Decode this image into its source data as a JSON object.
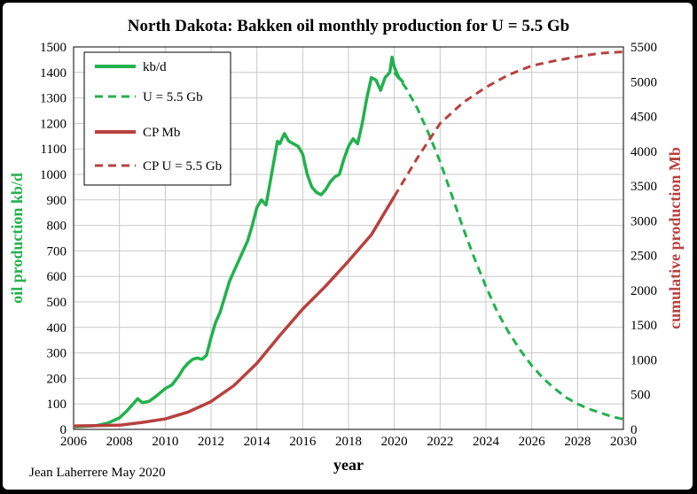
{
  "chart_data": {
    "type": "line",
    "title": "North Dakota: Bakken oil monthly production for U = 5.5 Gb",
    "xlabel": "year",
    "ylabel_left": "oil production kb/d",
    "ylabel_right": "cumulative production Mb",
    "credit": "Jean Laherrere May 2020",
    "xlim": [
      2006,
      2030
    ],
    "ylim_left": [
      0,
      1500
    ],
    "ylim_right": [
      0,
      5500
    ],
    "x_ticks": [
      "2006",
      "2008",
      "2010",
      "2012",
      "2014",
      "2016",
      "2018",
      "2020",
      "2022",
      "2024",
      "2026",
      "2028",
      "2030"
    ],
    "y_left_ticks": [
      "0",
      "100",
      "200",
      "300",
      "400",
      "500",
      "600",
      "700",
      "800",
      "900",
      "1000",
      "1100",
      "1200",
      "1300",
      "1400",
      "1500"
    ],
    "y_right_ticks": [
      "0",
      "500",
      "1000",
      "1500",
      "2000",
      "2500",
      "3000",
      "3500",
      "4000",
      "4500",
      "5000",
      "5500"
    ],
    "grid": true,
    "legend_position": "top-left",
    "colors": {
      "green": "#22b14c",
      "red": "#b7413e",
      "left_axis_label": "#22b14c",
      "right_axis_label": "#b7413e"
    },
    "series": [
      {
        "name": "kb/d",
        "axis": "left",
        "style": "solid",
        "color": "#22b14c",
        "x": [
          2006.0,
          2006.5,
          2007.0,
          2007.5,
          2008.0,
          2008.3,
          2008.6,
          2008.8,
          2009.0,
          2009.3,
          2009.6,
          2009.8,
          2010.0,
          2010.3,
          2010.6,
          2010.8,
          2011.0,
          2011.2,
          2011.4,
          2011.6,
          2011.8,
          2012.0,
          2012.2,
          2012.4,
          2012.6,
          2012.8,
          2013.0,
          2013.2,
          2013.4,
          2013.6,
          2013.8,
          2014.0,
          2014.2,
          2014.4,
          2014.6,
          2014.8,
          2014.9,
          2015.0,
          2015.2,
          2015.4,
          2015.6,
          2015.8,
          2016.0,
          2016.2,
          2016.4,
          2016.6,
          2016.8,
          2016.9,
          2017.0,
          2017.2,
          2017.4,
          2017.6,
          2017.8,
          2018.0,
          2018.2,
          2018.4,
          2018.6,
          2018.8,
          2019.0,
          2019.2,
          2019.4,
          2019.6,
          2019.8,
          2019.9,
          2020.0,
          2020.2,
          2020.4
        ],
        "y": [
          10,
          12,
          15,
          25,
          45,
          70,
          100,
          120,
          105,
          110,
          130,
          145,
          160,
          175,
          210,
          240,
          260,
          275,
          280,
          275,
          290,
          360,
          420,
          460,
          520,
          580,
          620,
          660,
          700,
          740,
          800,
          870,
          900,
          880,
          980,
          1080,
          1130,
          1120,
          1160,
          1130,
          1120,
          1110,
          1080,
          1000,
          950,
          930,
          920,
          930,
          940,
          970,
          990,
          1000,
          1060,
          1110,
          1140,
          1120,
          1200,
          1300,
          1380,
          1370,
          1330,
          1380,
          1400,
          1460,
          1420,
          1380,
          1360
        ]
      },
      {
        "name": "U = 5.5 Gb",
        "axis": "left",
        "style": "dashed",
        "color": "#22b14c",
        "x": [
          2020.0,
          2020.5,
          2021.0,
          2021.5,
          2022.0,
          2022.5,
          2023.0,
          2023.5,
          2024.0,
          2024.5,
          2025.0,
          2025.5,
          2026.0,
          2026.5,
          2027.0,
          2027.5,
          2028.0,
          2028.5,
          2029.0,
          2029.5,
          2030.0
        ],
        "y": [
          1400,
          1340,
          1260,
          1160,
          1050,
          920,
          790,
          670,
          560,
          460,
          380,
          310,
          250,
          200,
          160,
          125,
          100,
          80,
          65,
          50,
          40
        ]
      },
      {
        "name": "CP Mb",
        "axis": "right",
        "style": "solid",
        "color": "#b7413e",
        "x": [
          2006.0,
          2007.0,
          2008.0,
          2009.0,
          2010.0,
          2011.0,
          2012.0,
          2013.0,
          2014.0,
          2015.0,
          2016.0,
          2017.0,
          2018.0,
          2019.0,
          2020.0
        ],
        "y": [
          50,
          55,
          60,
          100,
          150,
          250,
          400,
          630,
          950,
          1350,
          1730,
          2060,
          2420,
          2800,
          3350
        ]
      },
      {
        "name": "CP U = 5.5 Gb",
        "axis": "right",
        "style": "dashed",
        "color": "#b7413e",
        "x": [
          2020.0,
          2021.0,
          2022.0,
          2023.0,
          2024.0,
          2025.0,
          2026.0,
          2027.0,
          2028.0,
          2029.0,
          2030.0
        ],
        "y": [
          3350,
          3900,
          4400,
          4700,
          4920,
          5100,
          5230,
          5300,
          5360,
          5410,
          5430
        ]
      }
    ]
  }
}
